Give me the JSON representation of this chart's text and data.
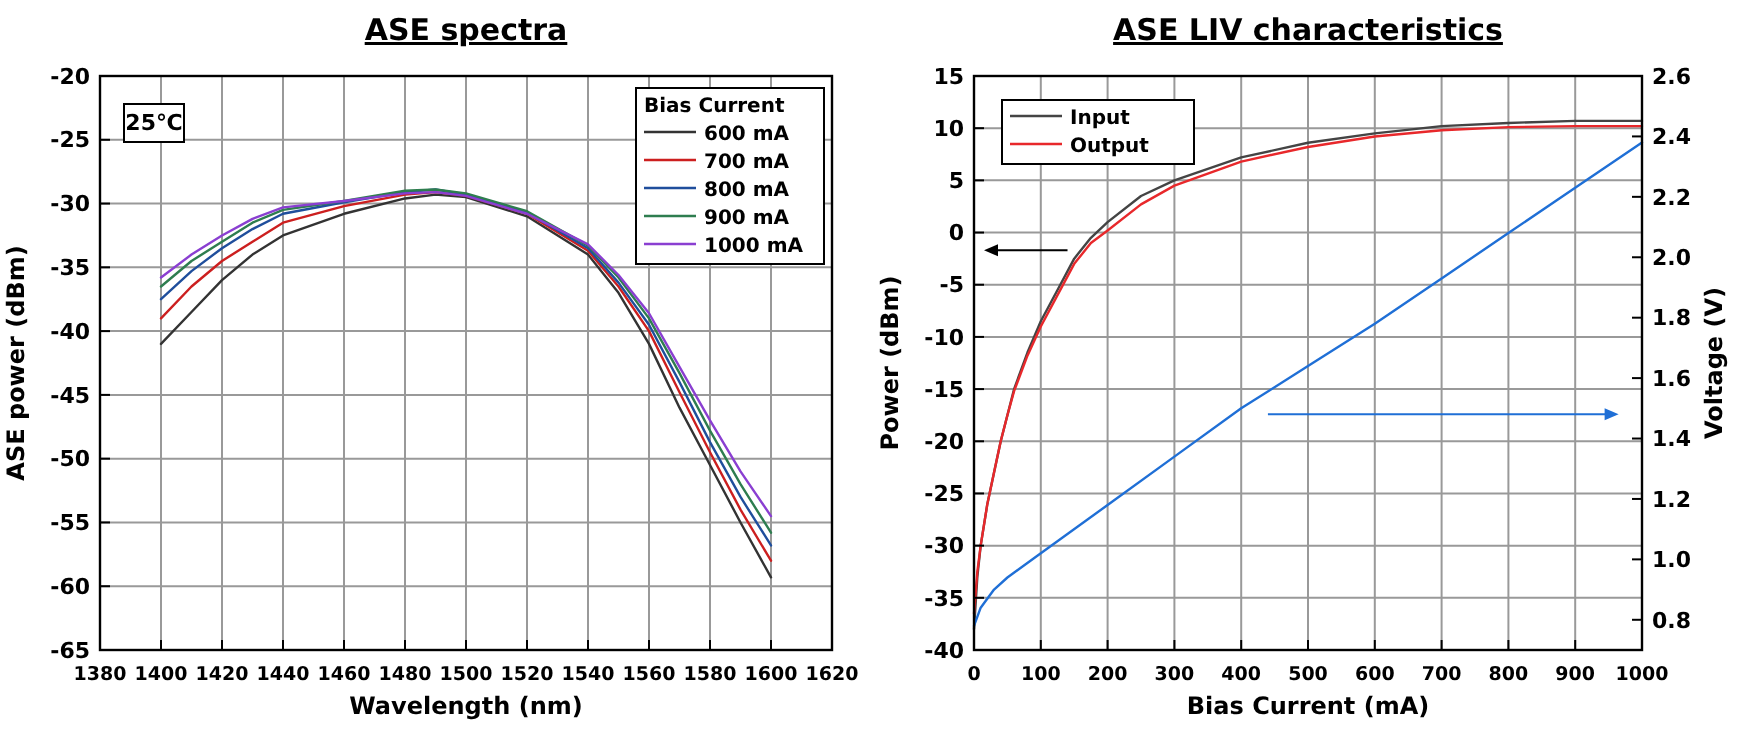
{
  "chart_data": [
    {
      "type": "line",
      "title": "ASE spectra",
      "xlabel": "Wavelength (nm)",
      "ylabel": "ASE power (dBm)",
      "legend_title": "Bias Current",
      "legend": "top right",
      "grid": true,
      "annotations": [
        "25℃"
      ],
      "x": [
        1400,
        1410,
        1420,
        1430,
        1440,
        1460,
        1480,
        1490,
        1500,
        1520,
        1540,
        1550,
        1560,
        1570,
        1580,
        1590,
        1600
      ],
      "xlim": [
        1380,
        1620
      ],
      "xticks": [
        1380,
        1400,
        1420,
        1440,
        1460,
        1480,
        1500,
        1520,
        1540,
        1560,
        1580,
        1600,
        1620
      ],
      "ylim": [
        -65,
        -20
      ],
      "yticks": [
        -65,
        -60,
        -55,
        -50,
        -45,
        -40,
        -35,
        -30,
        -25,
        -20
      ],
      "series": [
        {
          "name": "600 mA",
          "color": "#333333",
          "values": [
            -41,
            -38.5,
            -36,
            -34,
            -32.5,
            -30.8,
            -29.6,
            -29.3,
            -29.5,
            -31,
            -34,
            -37,
            -41,
            -46,
            -50.5,
            -55,
            -59.3
          ]
        },
        {
          "name": "700 mA",
          "color": "#cc1f1f",
          "values": [
            -39,
            -36.5,
            -34.5,
            -33,
            -31.5,
            -30.2,
            -29.3,
            -29.1,
            -29.4,
            -30.8,
            -33.7,
            -36.5,
            -40,
            -44.8,
            -49.5,
            -54,
            -58
          ]
        },
        {
          "name": "800 mA",
          "color": "#1f4e9c",
          "values": [
            -37.5,
            -35.3,
            -33.5,
            -32,
            -30.8,
            -29.9,
            -29.1,
            -28.9,
            -29.3,
            -30.7,
            -33.5,
            -36.2,
            -39.5,
            -44,
            -48.7,
            -53,
            -56.8
          ]
        },
        {
          "name": "900 mA",
          "color": "#2e7d4f",
          "values": [
            -36.5,
            -34.5,
            -33,
            -31.5,
            -30.5,
            -29.8,
            -29,
            -28.9,
            -29.2,
            -30.6,
            -33.3,
            -35.8,
            -39,
            -43.3,
            -47.8,
            -52,
            -55.8
          ]
        },
        {
          "name": "1000 mA",
          "color": "#8a3fd1",
          "values": [
            -35.8,
            -34,
            -32.5,
            -31.2,
            -30.3,
            -29.8,
            -29.2,
            -29.1,
            -29.4,
            -30.8,
            -33.2,
            -35.6,
            -38.6,
            -42.8,
            -47,
            -51,
            -54.5
          ]
        }
      ]
    },
    {
      "type": "line",
      "title": "ASE LIV characteristics",
      "xlabel": "Bias Current (mA)",
      "ylabel": "Power (dBm)",
      "y2label": "Voltage (V)",
      "legend": "top left",
      "grid": true,
      "xlim": [
        0,
        1000
      ],
      "xticks": [
        0,
        100,
        200,
        300,
        400,
        500,
        600,
        700,
        800,
        900,
        1000
      ],
      "ylim": [
        -40,
        15
      ],
      "yticks": [
        -40,
        -35,
        -30,
        -25,
        -20,
        -15,
        -10,
        -5,
        0,
        5,
        10,
        15
      ],
      "y2lim": [
        0.7,
        2.6
      ],
      "y2ticks": [
        {
          "value": 0.8,
          "label": "0.8"
        },
        {
          "value": 1,
          "label": "1.0"
        },
        {
          "value": 1.2,
          "label": "1.2"
        },
        {
          "value": 1.4,
          "label": "1.4"
        },
        {
          "value": 1.6,
          "label": "1.6"
        },
        {
          "value": 1.8,
          "label": "1.8"
        },
        {
          "value": 2,
          "label": "2.0"
        },
        {
          "value": 2.2,
          "label": "2.2"
        },
        {
          "value": 2.4,
          "label": "2.4"
        },
        {
          "value": 2.6,
          "label": "2.6"
        }
      ],
      "series": [
        {
          "name": "Input",
          "color": "#444444",
          "x": [
            0,
            5,
            10,
            20,
            30,
            40,
            50,
            60,
            80,
            100,
            125,
            150,
            175,
            200,
            250,
            300,
            400,
            500,
            600,
            700,
            800,
            900,
            1000
          ],
          "values": [
            -38,
            -33,
            -30,
            -26,
            -23,
            -20,
            -17.5,
            -15,
            -11.5,
            -8.5,
            -5.5,
            -2.5,
            -0.5,
            1,
            3.5,
            5,
            7.2,
            8.6,
            9.5,
            10.2,
            10.5,
            10.7,
            10.7
          ]
        },
        {
          "name": "Output",
          "color": "#e8282b",
          "x": [
            0,
            5,
            10,
            20,
            30,
            40,
            50,
            60,
            80,
            100,
            125,
            150,
            175,
            200,
            250,
            300,
            400,
            500,
            600,
            700,
            800,
            900,
            1000
          ],
          "values": [
            -36.5,
            -32.5,
            -30,
            -26,
            -23,
            -20,
            -17.5,
            -15.2,
            -11.8,
            -9,
            -6,
            -3,
            -1,
            0.2,
            2.7,
            4.5,
            6.8,
            8.2,
            9.2,
            9.8,
            10.1,
            10.2,
            10.2
          ]
        },
        {
          "color": "#1f6fd6",
          "axis": "y2",
          "x": [
            0,
            10,
            30,
            50,
            100,
            200,
            300,
            400,
            500,
            600,
            700,
            800,
            900,
            1000
          ],
          "values": [
            0.78,
            0.84,
            0.9,
            0.94,
            1.02,
            1.18,
            1.34,
            1.5,
            1.64,
            1.78,
            1.93,
            2.08,
            2.23,
            2.38
          ]
        }
      ]
    }
  ]
}
